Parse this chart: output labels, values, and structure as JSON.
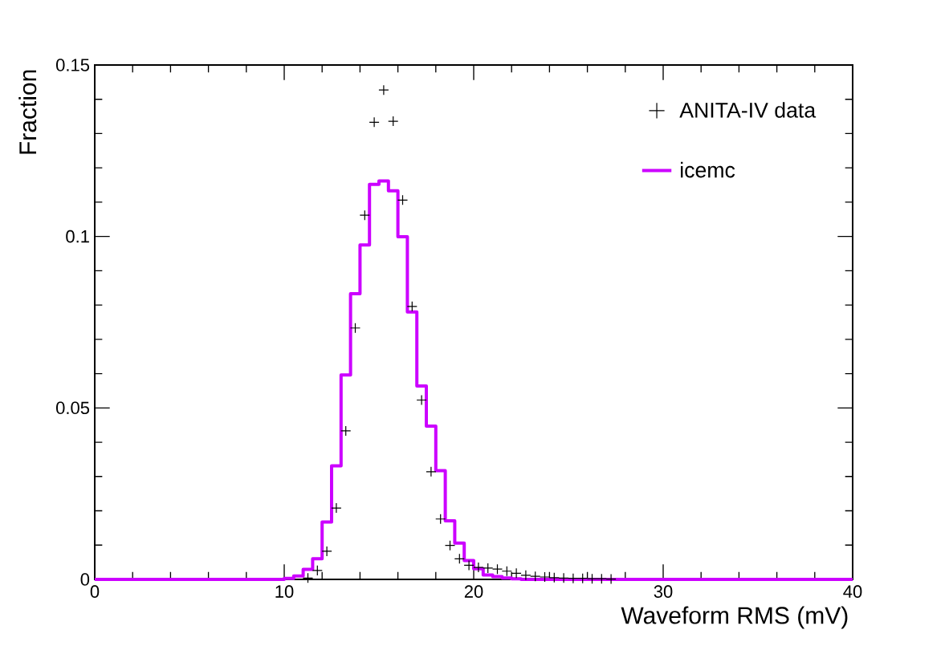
{
  "chart_data": {
    "type": "histogram",
    "xlabel": "Waveform RMS (mV)",
    "ylabel": "Fraction",
    "bins": [
      0,
      10,
      10.5,
      11,
      11.5,
      12,
      12.5,
      13,
      13.5,
      14,
      14.5,
      15,
      15.5,
      16,
      16.5,
      17,
      17.5,
      18,
      18.5,
      19,
      19.5,
      20,
      20.5,
      21,
      21.5,
      22,
      22.5,
      40
    ],
    "series": [
      {
        "name": "ANITA-IV data",
        "type": "scatter",
        "color": "#000000",
        "marker": "cross",
        "x": [
          11.25,
          11.75,
          12.25,
          12.75,
          13.25,
          13.75,
          14.25,
          14.75,
          15.25,
          15.75,
          16.25,
          16.75,
          17.25,
          17.75,
          18.25,
          18.75,
          19.25,
          19.75,
          20.25,
          20.75,
          21.25,
          21.75,
          22.25,
          22.75,
          23.25,
          23.75,
          24.25,
          24.75,
          25.25,
          25.75,
          26.25,
          26.75,
          27.25
        ],
        "values": [
          0.0004,
          0.0026,
          0.0082,
          0.0208,
          0.0433,
          0.0733,
          0.1062,
          0.1333,
          0.1427,
          0.1336,
          0.1106,
          0.0796,
          0.0523,
          0.0314,
          0.0176,
          0.0099,
          0.006,
          0.0041,
          0.0035,
          0.0033,
          0.003,
          0.0024,
          0.0018,
          0.0012,
          0.0009,
          0.0007,
          0.0005,
          0.0004,
          0.0003,
          0.0003,
          0.0002,
          0.0002,
          0.0001
        ]
      },
      {
        "name": "icemc",
        "color": "#cc00ff",
        "values": [
          0,
          0.0003,
          0.001,
          0.0029,
          0.006,
          0.0167,
          0.0331,
          0.0596,
          0.0833,
          0.0975,
          0.1152,
          0.1162,
          0.1133,
          0.0999,
          0.078,
          0.0564,
          0.0447,
          0.0317,
          0.0171,
          0.0106,
          0.0055,
          0.0031,
          0.0013,
          0.0008,
          0.0004,
          0.0002,
          0
        ]
      }
    ],
    "xlim": [
      0,
      40
    ],
    "ylim": [
      0,
      0.15
    ],
    "xticks": [
      0,
      10,
      20,
      30,
      40
    ],
    "yticks": [
      0,
      0.05,
      0.1,
      0.15
    ],
    "legend": "top right",
    "grid": false
  }
}
